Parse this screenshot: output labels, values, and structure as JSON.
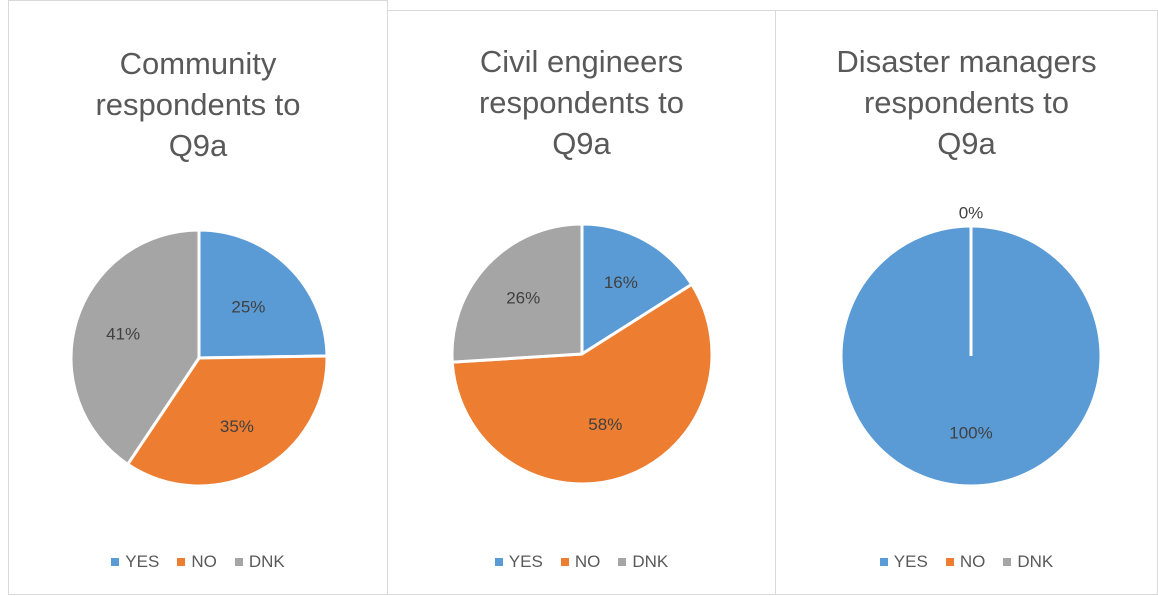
{
  "chart_data": [
    {
      "type": "pie",
      "title": [
        "Community",
        "respondents to",
        "Q9a"
      ],
      "categories": [
        "YES",
        "NO",
        "DNK"
      ],
      "values": [
        25,
        35,
        41
      ],
      "labels": [
        "25%",
        "35%",
        "41%"
      ],
      "colors": [
        "#5b9bd5",
        "#ed7d31",
        "#a5a5a5"
      ],
      "legend": "bottom"
    },
    {
      "type": "pie",
      "title": [
        "Civil engineers",
        "respondents to",
        "Q9a"
      ],
      "categories": [
        "YES",
        "NO",
        "DNK"
      ],
      "values": [
        16,
        58,
        26
      ],
      "labels": [
        "16%",
        "58%",
        "26%"
      ],
      "colors": [
        "#5b9bd5",
        "#ed7d31",
        "#a5a5a5"
      ],
      "legend": "bottom"
    },
    {
      "type": "pie",
      "title": [
        "Disaster managers",
        "respondents to",
        "Q9a"
      ],
      "categories": [
        "YES",
        "NO",
        "DNK"
      ],
      "values": [
        100,
        0,
        0
      ],
      "labels": [
        "100%",
        "0%",
        ""
      ],
      "colors": [
        "#5b9bd5",
        "#ed7d31",
        "#a5a5a5"
      ],
      "legend": "bottom"
    }
  ]
}
